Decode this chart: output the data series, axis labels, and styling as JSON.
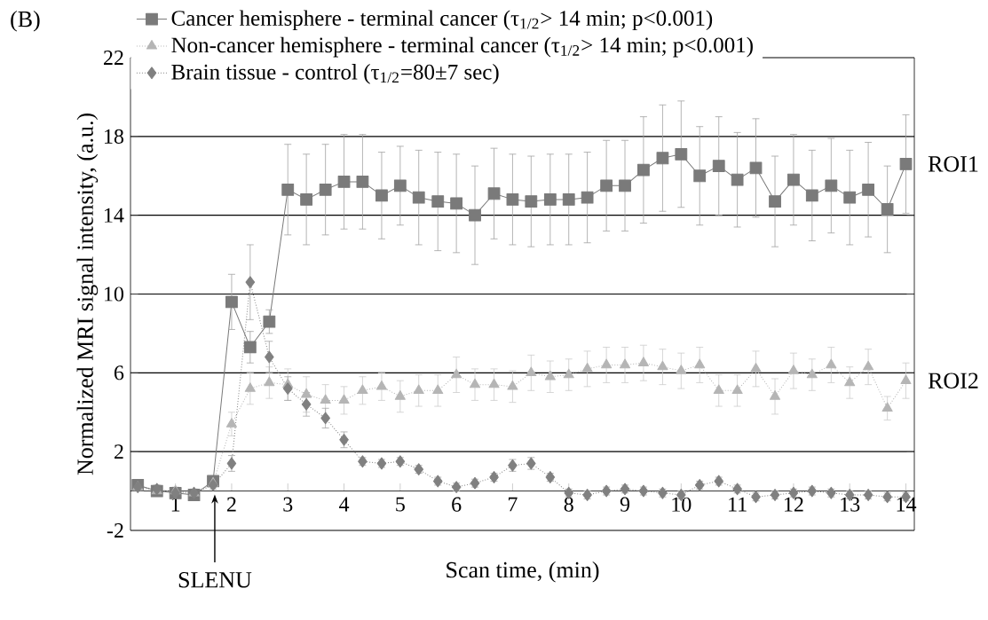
{
  "chart_data": {
    "type": "line",
    "xlabel": "Scan time, (min)",
    "ylabel": "Normalized MRI signal intensity, (a.u.)",
    "x": [
      0.33,
      0.67,
      1,
      1.33,
      1.67,
      2,
      2.33,
      2.67,
      3,
      3.33,
      3.67,
      4,
      4.33,
      4.67,
      5,
      5.33,
      5.67,
      6,
      6.33,
      6.67,
      7,
      7.33,
      7.67,
      8,
      8.33,
      8.67,
      9,
      9.33,
      9.67,
      10,
      10.33,
      10.67,
      11,
      11.33,
      11.67,
      12,
      12.33,
      12.67,
      13,
      13.33,
      13.67,
      14
    ],
    "series": [
      {
        "name": "Cancer hemisphere - terminal cancer (τ$_{1/2}$> 14 min; p<0.001)",
        "color": "#7a7a7a",
        "marker": "square",
        "line_style": "solid",
        "values": [
          0.3,
          0.0,
          -0.1,
          -0.2,
          0.5,
          9.6,
          7.3,
          8.6,
          15.3,
          14.8,
          15.3,
          15.7,
          15.7,
          15.0,
          15.5,
          14.9,
          14.7,
          14.6,
          14.0,
          15.1,
          14.8,
          14.7,
          14.8,
          14.8,
          14.9,
          15.5,
          15.5,
          16.3,
          16.9,
          17.1,
          16.0,
          16.5,
          15.8,
          16.4,
          14.7,
          15.8,
          15.0,
          15.5,
          14.9,
          15.3,
          14.3,
          16.6
        ],
        "errors": [
          0.2,
          0.2,
          0.2,
          0.2,
          0.2,
          1.4,
          0.8,
          0.6,
          2.3,
          2.3,
          2.3,
          2.4,
          2.4,
          2.2,
          2.0,
          2.4,
          2.5,
          2.5,
          2.5,
          2.3,
          2.3,
          2.3,
          2.3,
          2.3,
          2.3,
          2.3,
          2.3,
          2.7,
          2.7,
          2.7,
          2.5,
          2.5,
          2.4,
          2.5,
          2.3,
          2.3,
          2.3,
          2.4,
          2.4,
          2.4,
          2.2,
          2.5
        ]
      },
      {
        "name": "Non-cancer hemisphere - terminal cancer (τ$_{1/2}$> 14 min; p<0.001)",
        "color": "#b5b5b5",
        "marker": "triangle",
        "line_style": "dotted",
        "values": [
          0.2,
          0.0,
          0.0,
          -0.1,
          0.4,
          3.4,
          5.2,
          5.5,
          5.4,
          4.9,
          4.6,
          4.6,
          5.1,
          5.3,
          4.8,
          5.1,
          5.1,
          5.9,
          5.4,
          5.4,
          5.3,
          6.0,
          5.8,
          5.9,
          6.2,
          6.4,
          6.4,
          6.5,
          6.3,
          6.1,
          6.4,
          5.1,
          5.1,
          6.2,
          4.8,
          6.1,
          5.9,
          6.4,
          5.5,
          6.3,
          4.2,
          5.6
        ],
        "errors": [
          0.2,
          0.2,
          0.2,
          0.2,
          0.2,
          0.6,
          0.8,
          0.8,
          0.8,
          0.9,
          0.8,
          0.7,
          0.7,
          0.7,
          0.8,
          0.8,
          0.8,
          0.9,
          0.8,
          0.8,
          0.8,
          0.9,
          0.8,
          0.8,
          0.9,
          0.9,
          0.9,
          0.9,
          0.9,
          0.9,
          0.9,
          0.8,
          0.8,
          0.9,
          0.9,
          0.9,
          0.8,
          0.9,
          0.8,
          0.9,
          0.6,
          0.9
        ]
      },
      {
        "name": "Brain tissue - control (τ$_{1/2}$=80±7 sec)",
        "color": "#808080",
        "marker": "diamond",
        "line_style": "dotted",
        "values": [
          0.2,
          0.1,
          -0.1,
          -0.1,
          0.3,
          1.4,
          10.6,
          6.8,
          5.2,
          4.4,
          3.7,
          2.6,
          1.5,
          1.4,
          1.5,
          1.1,
          0.5,
          0.2,
          0.4,
          0.7,
          1.3,
          1.4,
          0.7,
          -0.1,
          -0.2,
          0.0,
          0.1,
          0.0,
          -0.1,
          -0.2,
          0.3,
          0.5,
          0.1,
          -0.3,
          -0.2,
          -0.1,
          0.0,
          -0.1,
          -0.2,
          -0.2,
          -0.3,
          -0.3
        ],
        "errors": [
          0.2,
          0.2,
          0.2,
          0.2,
          0.2,
          0.4,
          1.9,
          0.8,
          0.6,
          0.6,
          0.5,
          0.4,
          0.2,
          0.2,
          0.2,
          0.2,
          0.2,
          0.2,
          0.2,
          0.2,
          0.3,
          0.3,
          0.2,
          0.2,
          0.2,
          0.2,
          0.2,
          0.2,
          0.2,
          0.2,
          0.2,
          0.2,
          0.2,
          0.2,
          0.2,
          0.2,
          0.2,
          0.2,
          0.2,
          0.2,
          0.2,
          0.2
        ]
      }
    ],
    "xlim": [
      0.2,
      14.15
    ],
    "ylim": [
      -2,
      22
    ],
    "xticks": [
      1,
      2,
      3,
      4,
      5,
      6,
      7,
      8,
      9,
      10,
      11,
      12,
      13,
      14
    ],
    "yticks": [
      -2,
      2,
      6,
      10,
      14,
      18,
      22
    ],
    "grid": "y",
    "legend": "top left",
    "annotations": [
      "(B)",
      "ROI1",
      "ROI2",
      {
        "text": "SLENU",
        "x": 1.7
      }
    ]
  }
}
